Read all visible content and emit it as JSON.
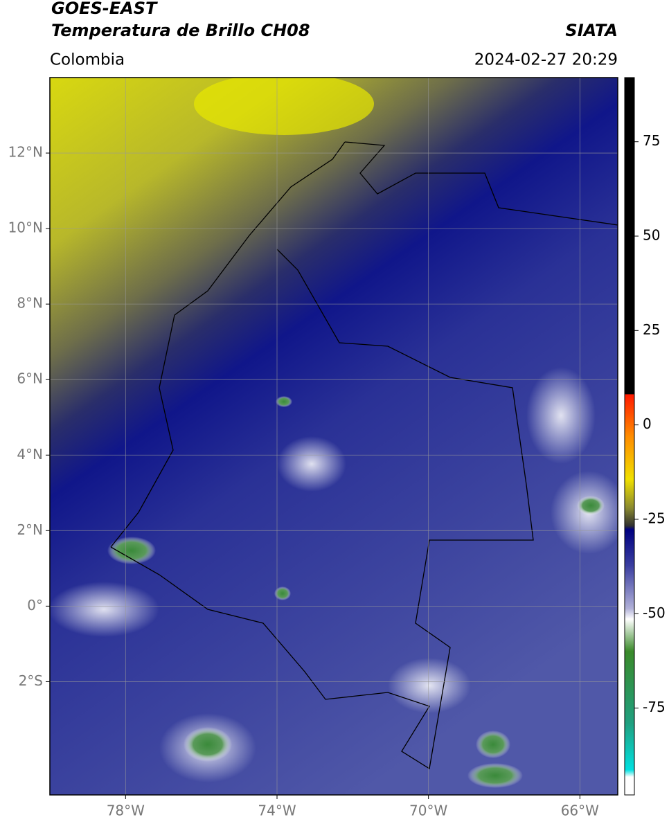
{
  "header": {
    "satellite": "GOES-EAST",
    "product": "Temperatura de Brillo CH08",
    "source": "SIATA",
    "region": "Colombia",
    "datetime": "2024-02-27 20:29"
  },
  "map": {
    "xlim": [
      -80,
      -65
    ],
    "ylim": [
      -5,
      14
    ],
    "xticks": [
      {
        "value": -78,
        "label": "78°W"
      },
      {
        "value": -74,
        "label": "74°W"
      },
      {
        "value": -70,
        "label": "70°W"
      },
      {
        "value": -66,
        "label": "66°W"
      }
    ],
    "yticks": [
      {
        "value": 12,
        "label": "12°N"
      },
      {
        "value": 10,
        "label": "10°N"
      },
      {
        "value": 8,
        "label": "8°N"
      },
      {
        "value": 6,
        "label": "6°N"
      },
      {
        "value": 4,
        "label": "4°N"
      },
      {
        "value": 2,
        "label": "2°N"
      },
      {
        "value": 0,
        "label": "0°"
      },
      {
        "value": -2,
        "label": "2°S"
      }
    ],
    "grid": true
  },
  "colorbar": {
    "clim": [
      -98,
      92
    ],
    "ticks": [
      75,
      50,
      25,
      0,
      -25,
      -50,
      -75
    ]
  }
}
